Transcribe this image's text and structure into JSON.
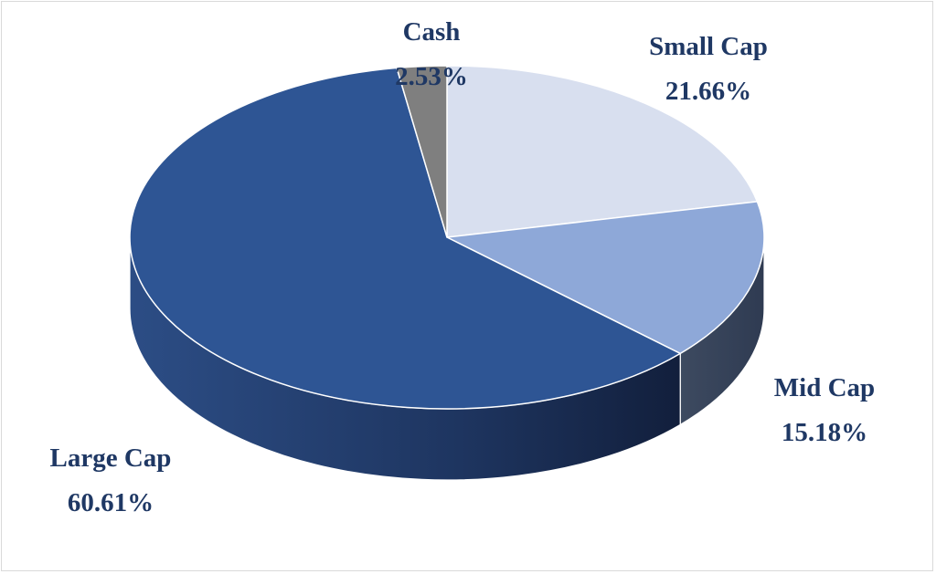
{
  "chart_data": {
    "type": "pie",
    "style": "3d",
    "title": "",
    "slices": [
      {
        "name": "Small Cap",
        "value": 21.66,
        "label": "21.66%",
        "color": "#d8dfef",
        "side_color": "#b8c1d6"
      },
      {
        "name": "Mid Cap",
        "value": 15.18,
        "label": "15.18%",
        "color": "#8ea8d8",
        "side_color": "#3a4a63"
      },
      {
        "name": "Large Cap",
        "value": 60.61,
        "label": "60.61%",
        "color": "#2e5594",
        "side_color": "#1f3864"
      },
      {
        "name": "Cash",
        "value": 2.53,
        "label": "2.53%",
        "color": "#7f7f7f",
        "side_color": "#5a5a5a"
      }
    ],
    "legend": "none",
    "label_color": "#1f3864"
  }
}
